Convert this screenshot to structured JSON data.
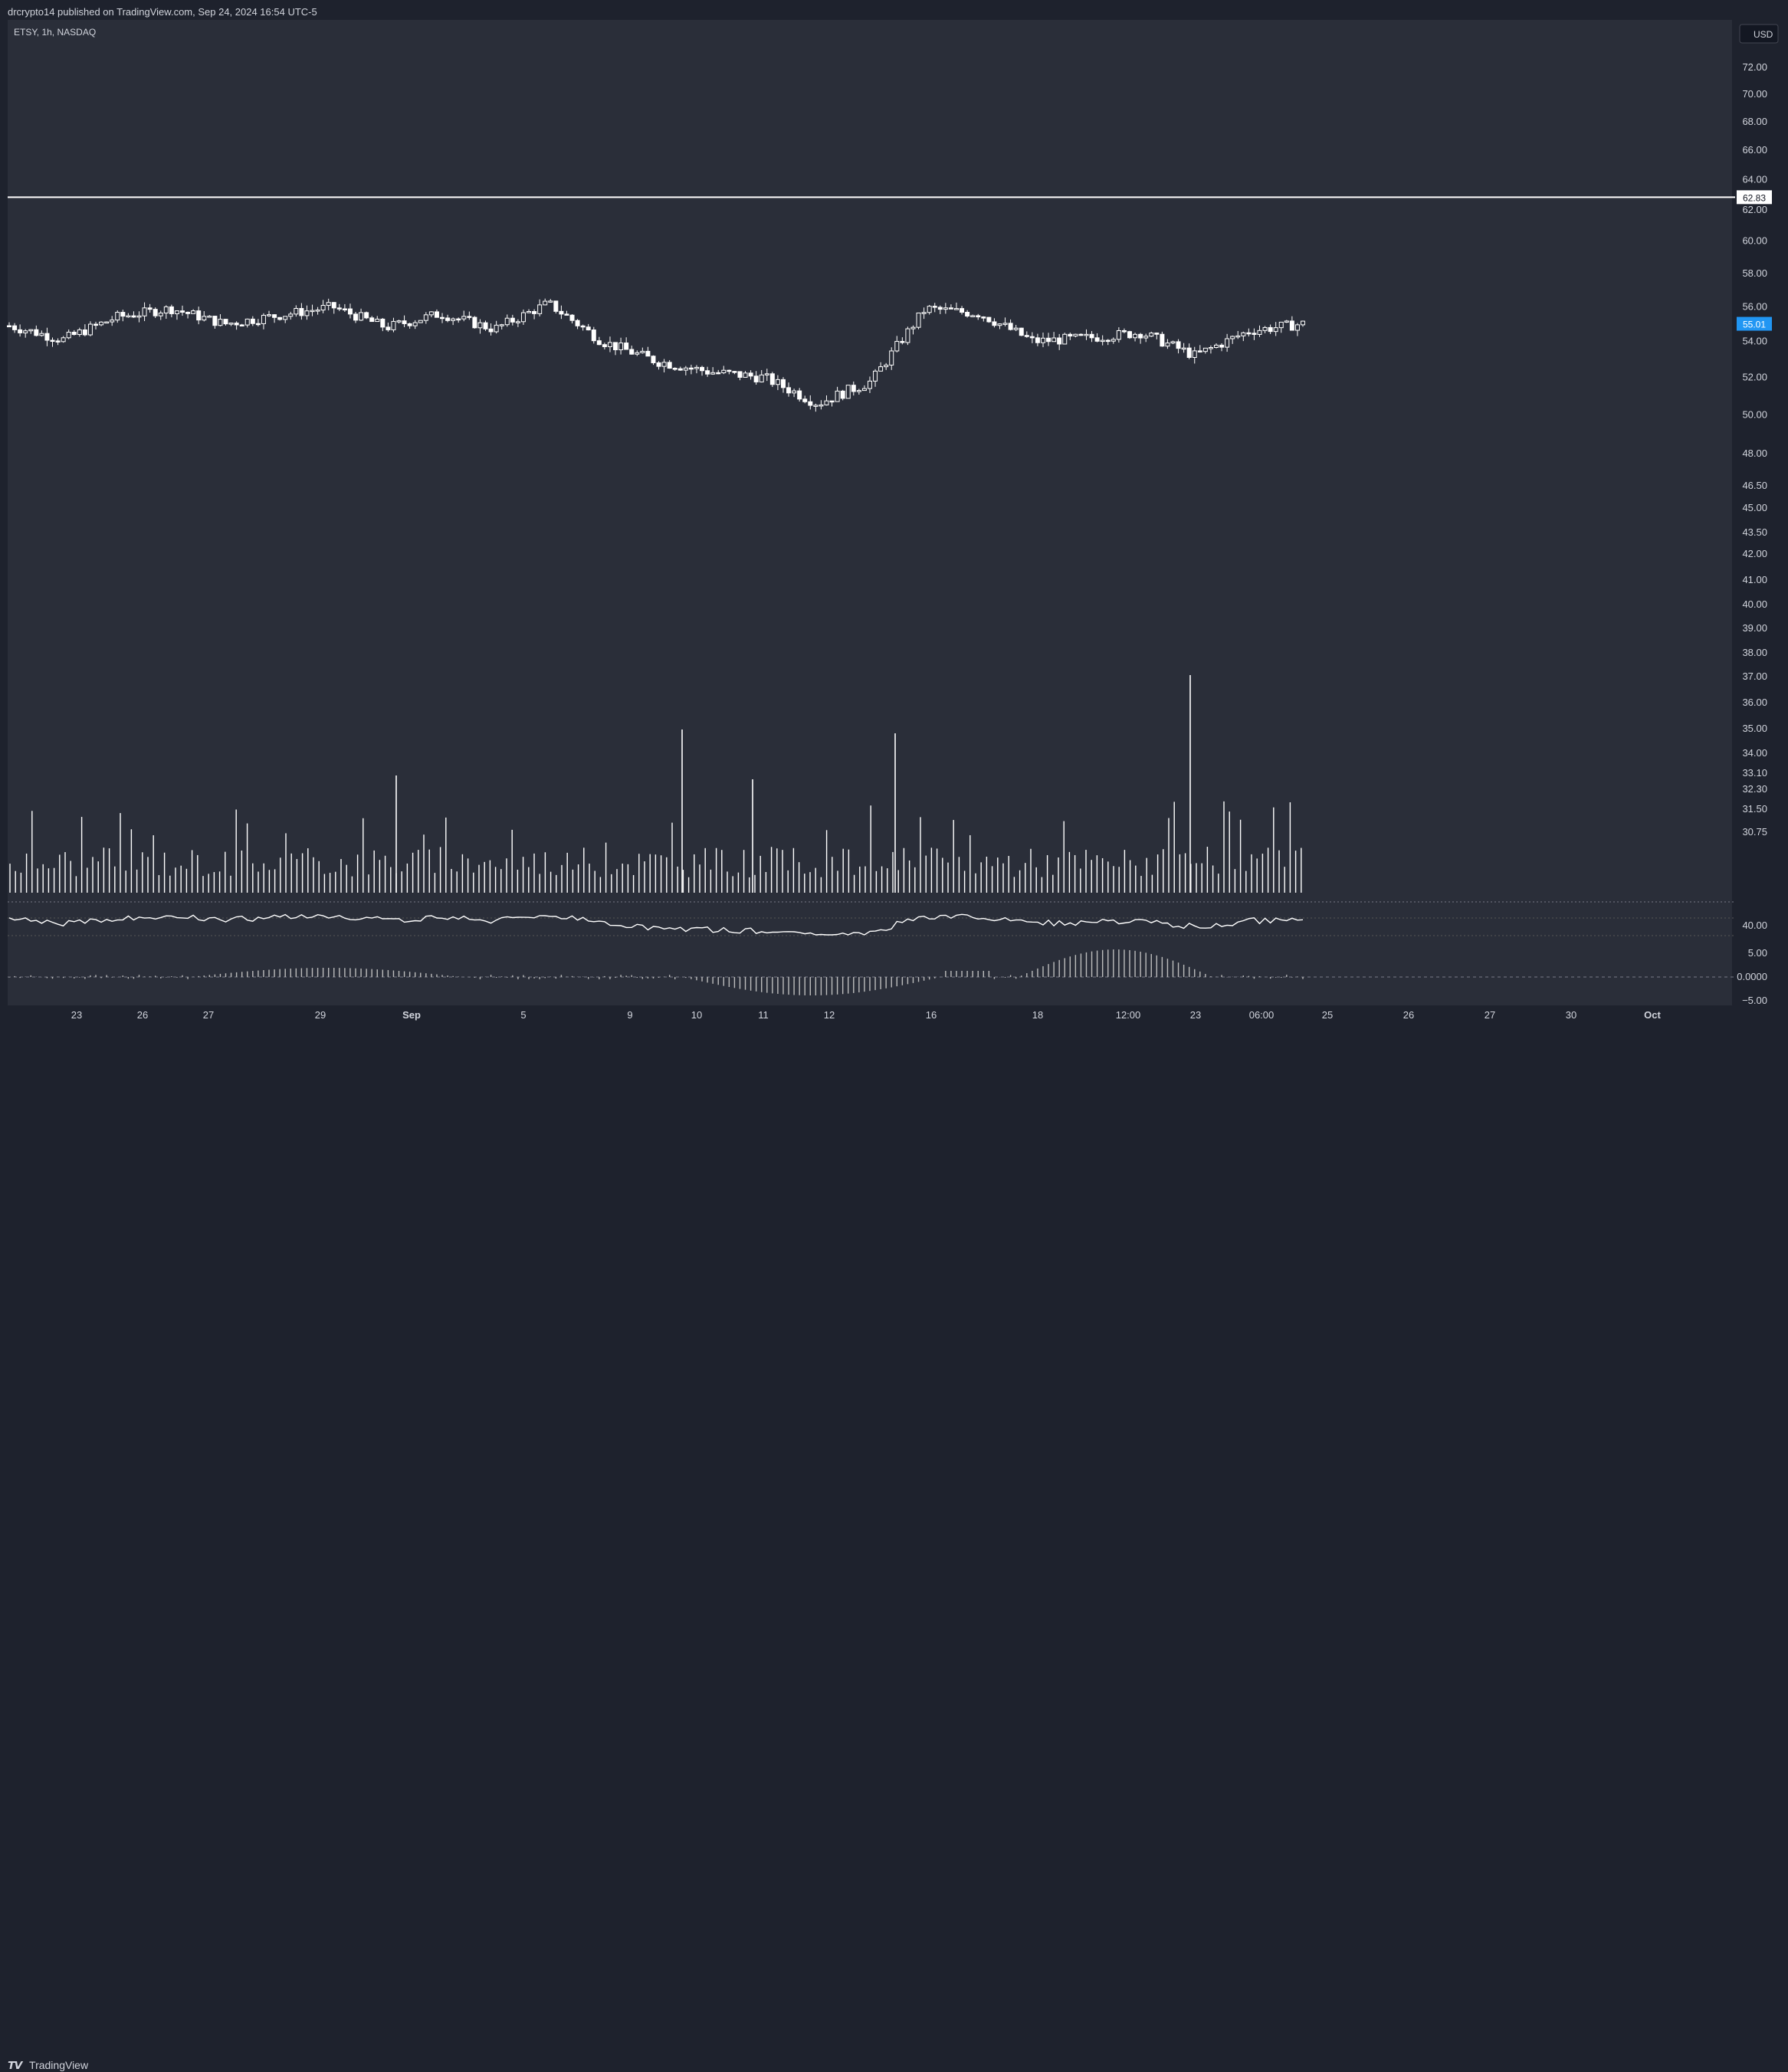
{
  "header": {
    "published": "drcrypto14 published on TradingView.com, Sep 24, 2024 16:54 UTC-5",
    "symbol": "ETSY, 1h, NASDAQ"
  },
  "currency_label": "USD",
  "footer": {
    "brand": "TradingView"
  },
  "colors": {
    "background": "#2a2e39",
    "frame": "#1e222d",
    "series": "#ffffff",
    "price_tag": "#2196f3",
    "text": "#d1d4dc"
  },
  "chart_data": {
    "type": "candlestick",
    "symbol": "ETSY",
    "interval": "1h",
    "exchange": "NASDAQ",
    "scale": "log",
    "currency": "USD",
    "price_axis_ticks": [
      "72.00",
      "70.00",
      "68.00",
      "66.00",
      "64.00",
      "62.00",
      "60.00",
      "58.00",
      "56.00",
      "54.00",
      "52.00",
      "50.00",
      "48.00",
      "46.50",
      "45.00",
      "43.50",
      "42.00",
      "41.00",
      "40.00",
      "39.00",
      "38.00",
      "37.00",
      "36.00",
      "35.00",
      "34.00",
      "33.10",
      "32.30",
      "31.50",
      "30.75"
    ],
    "time_axis_ticks": [
      "23",
      "26",
      "27",
      "29",
      "Sep",
      "5",
      "9",
      "10",
      "11",
      "12",
      "16",
      "18",
      "12:00",
      "23",
      "06:00",
      "25",
      "26",
      "27",
      "30",
      "Oct"
    ],
    "horizontal_line": {
      "value": 62.83,
      "label": "62.83"
    },
    "last_price": {
      "value": 55.01,
      "label": "55.01"
    },
    "price_path": [
      [
        "Aug 22",
        54.9
      ],
      [
        "Aug 23",
        54.1
      ],
      [
        "Aug 26",
        55.4
      ],
      [
        "Aug 27",
        55.9
      ],
      [
        "Aug 27b",
        55.0
      ],
      [
        "Aug 28",
        55.5
      ],
      [
        "Aug 29",
        56.0
      ],
      [
        "Aug 30",
        54.8
      ],
      [
        "Sep 3",
        55.6
      ],
      [
        "Sep 4",
        54.7
      ],
      [
        "Sep 5",
        56.2
      ],
      [
        "Sep 6",
        54.0
      ],
      [
        "Sep 9",
        52.9
      ],
      [
        "Sep 10",
        52.3
      ],
      [
        "Sep 11",
        52.0
      ],
      [
        "Sep 12",
        50.6
      ],
      [
        "Sep 12b",
        51.8
      ],
      [
        "Sep 13",
        55.9
      ],
      [
        "Sep 16",
        55.6
      ],
      [
        "Sep 17",
        54.0
      ],
      [
        "Sep 18",
        54.2
      ],
      [
        "Sep 19",
        54.5
      ],
      [
        "Sep 20",
        53.2
      ],
      [
        "Sep 23",
        54.6
      ],
      [
        "Sep 24",
        55.01
      ]
    ],
    "volume_panel": {
      "spikes": [
        [
          "Sep 10",
          36.0
        ],
        [
          "Sep 13",
          35.9
        ],
        [
          "Sep 23",
          37.6
        ],
        [
          "Sep 4",
          34.2
        ],
        [
          "Sep 11",
          34.0
        ]
      ]
    },
    "oscillator_panel": {
      "ticks": [
        "40.00"
      ]
    },
    "histogram_panel": {
      "ticks": [
        "5.00",
        "0.0000",
        "-5.00"
      ]
    }
  }
}
